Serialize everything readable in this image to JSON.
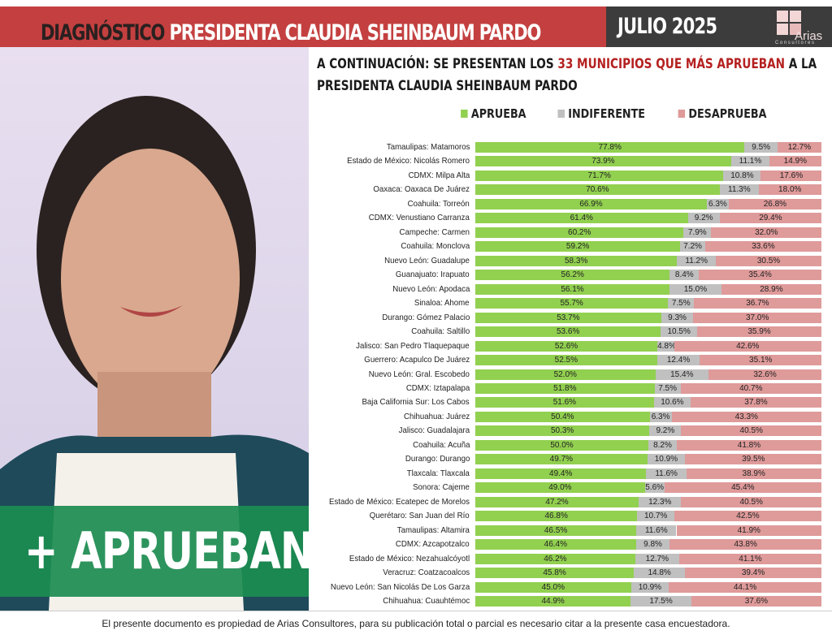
{
  "header": {
    "title_dark": "DIAGNÓSTICO",
    "title_light": "PRESIDENTA CLAUDIA SHEINBAUM PARDO",
    "date": "JULIO 2025",
    "logo_text": "Arias",
    "logo_sub": "Consultores"
  },
  "photo": {
    "band_text": "+ APRUEBAN"
  },
  "subtitle": {
    "part1": "A CONTINUACIÓN: SE PRESENTAN LOS ",
    "highlight": "33 MUNICIPIOS QUE MÁS APRUEBAN",
    "part2": " A LA PRESIDENTA CLAUDIA SHEINBAUM PARDO"
  },
  "footer": "El presente documento es propiedad de Arias Consultores, para su publicación total o parcial es necesario citar a la presente casa encuestadora.",
  "chart_data": {
    "type": "bar",
    "orientation": "horizontal",
    "stacked": true,
    "xlim": [
      0,
      100
    ],
    "legend_position": "top",
    "grid": true,
    "colors": {
      "Aprueba": "#92d050",
      "Indiferente": "#c0c0c0",
      "Desaprueba": "#df9a9a"
    },
    "categories": [
      "Tamaulipas: Matamoros",
      "Estado de México: Nicolás Romero",
      "CDMX: Milpa Alta",
      "Oaxaca: Oaxaca De Juárez",
      "Coahuila: Torreón",
      "CDMX: Venustiano Carranza",
      "Campeche: Carmen",
      "Coahuila: Monclova",
      "Nuevo León: Guadalupe",
      "Guanajuato: Irapuato",
      "Nuevo León: Apodaca",
      "Sinaloa: Ahome",
      "Durango: Gómez Palacio",
      "Coahuila: Saltillo",
      "Jalisco: San Pedro Tlaquepaque",
      "Guerrero: Acapulco De Juárez",
      "Nuevo León: Gral. Escobedo",
      "CDMX: Iztapalapa",
      "Baja California Sur: Los Cabos",
      "Chihuahua: Juárez",
      "Jalisco: Guadalajara",
      "Coahuila: Acuña",
      "Durango: Durango",
      "Tlaxcala: Tlaxcala",
      "Sonora: Cajeme",
      "Estado de México: Ecatepec de Morelos",
      "Querétaro: San Juan del Río",
      "Tamaulipas: Altamira",
      "CDMX: Azcapotzalco",
      "Estado de México: Nezahualcóyotl",
      "Veracruz: Coatzacoalcos",
      "Nuevo León: San Nicolás De Los Garza",
      "Chihuahua: Cuauhtémoc"
    ],
    "series": [
      {
        "name": "APRUEBA",
        "values": [
          77.8,
          73.9,
          71.7,
          70.6,
          66.9,
          61.4,
          60.2,
          59.2,
          58.3,
          56.2,
          56.1,
          55.7,
          53.7,
          53.6,
          52.6,
          52.5,
          52.0,
          51.8,
          51.6,
          50.4,
          50.3,
          50.0,
          49.7,
          49.4,
          49.0,
          47.2,
          46.8,
          46.5,
          46.4,
          46.2,
          45.8,
          45.0,
          44.9
        ]
      },
      {
        "name": "INDIFERENTE",
        "values": [
          9.5,
          11.1,
          10.8,
          11.3,
          6.3,
          9.2,
          7.9,
          7.2,
          11.2,
          8.4,
          15.0,
          7.5,
          9.3,
          10.5,
          4.8,
          12.4,
          15.4,
          7.5,
          10.6,
          6.3,
          9.2,
          8.2,
          10.9,
          11.6,
          5.6,
          12.3,
          10.7,
          11.6,
          9.8,
          12.7,
          14.8,
          10.9,
          17.5
        ]
      },
      {
        "name": "DESAPRUEBA",
        "values": [
          12.7,
          14.9,
          17.6,
          18.0,
          26.8,
          29.4,
          32.0,
          33.6,
          30.5,
          35.4,
          28.9,
          36.7,
          37.0,
          35.9,
          42.6,
          35.1,
          32.6,
          40.7,
          37.8,
          43.3,
          40.5,
          41.8,
          39.5,
          38.9,
          45.4,
          40.5,
          42.5,
          41.9,
          43.8,
          41.1,
          39.4,
          44.1,
          37.6
        ]
      }
    ]
  }
}
